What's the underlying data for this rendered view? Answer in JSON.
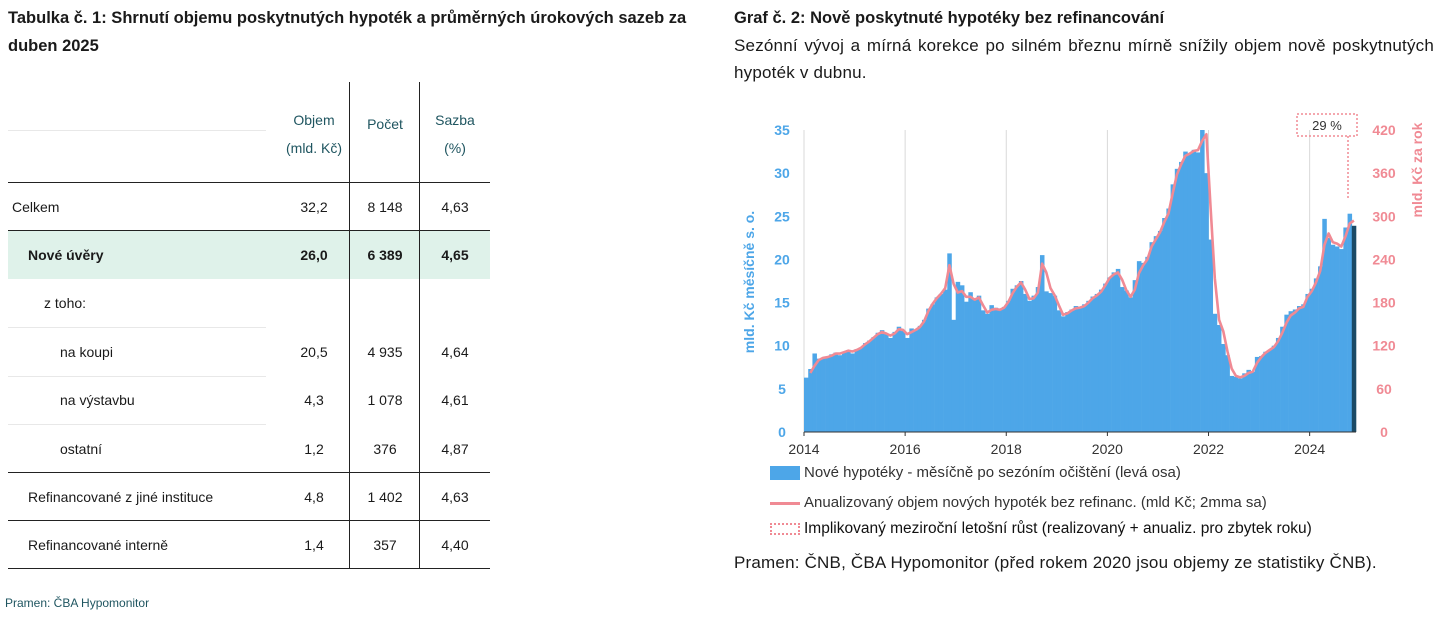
{
  "table": {
    "title": "Tabulka č. 1: Shrnutí objemu poskytnutých hypoték a průměrných úrokových sazeb za duben 2025",
    "headers": {
      "objem_line1": "Objem",
      "objem_line2": "(mld. Kč)",
      "pocet": "Počet",
      "sazba_line1": "Sazba",
      "sazba_line2": "(%)"
    },
    "rows": [
      {
        "label": "Celkem",
        "objem": "32,2",
        "pocet": "8 148",
        "sazba": "4,63"
      },
      {
        "label": "Nové úvěry",
        "objem": "26,0",
        "pocet": "6 389",
        "sazba": "4,65"
      },
      {
        "label": "z toho:",
        "objem": "",
        "pocet": "",
        "sazba": ""
      },
      {
        "label": "na koupi",
        "objem": "20,5",
        "pocet": "4 935",
        "sazba": "4,64"
      },
      {
        "label": "na výstavbu",
        "objem": "4,3",
        "pocet": "1 078",
        "sazba": "4,61"
      },
      {
        "label": "ostatní",
        "objem": "1,2",
        "pocet": "376",
        "sazba": "4,87"
      },
      {
        "label": "Refinancované z jiné instituce",
        "objem": "4,8",
        "pocet": "1 402",
        "sazba": "4,63"
      },
      {
        "label": "Refinancované interně",
        "objem": "1,4",
        "pocet": "357",
        "sazba": "4,40"
      }
    ],
    "source": "Pramen: ČBA Hypomonitor"
  },
  "chart_section": {
    "title": "Graf č. 2: Nově poskytnuté hypotéky bez refinancování",
    "subtitle": "Sezónní vývoj a mírná korekce po silném březnu mírně snížily objem nově poskytnutých hypoték v dubnu.",
    "source": "Pramen: ČNB, ČBA Hypomonitor (před rokem 2020 jsou objemy ze statistiky ČNB)."
  },
  "chart_data": {
    "type": "bar",
    "title": "",
    "xlabel": "",
    "ylabel": "mld. Kč měsíčně s. o.",
    "ylabel_right": "mld. Kč za rok",
    "ylim": [
      0,
      35
    ],
    "ylim_right": [
      0,
      420
    ],
    "yticks": [
      0,
      5,
      10,
      15,
      20,
      25,
      30,
      35
    ],
    "yticks_right": [
      0,
      60,
      120,
      180,
      240,
      300,
      360,
      420
    ],
    "xticks": [
      "2014",
      "2016",
      "2018",
      "2020",
      "2022",
      "2024"
    ],
    "x_start": "2014-01",
    "grid": "vertical",
    "annotation": "29 %",
    "colors": {
      "bars": "#4da6e8",
      "last_bar": "#1a4a66",
      "line": "#f08a94",
      "annotation": "#f08a94",
      "left_axis": "#4da6e8",
      "right_axis": "#f08a94"
    },
    "series": [
      {
        "name": "Nové hypotéky - měsíčně po sezóním očištění (levá osa)",
        "axis": "left",
        "values": [
          6.3,
          7.3,
          9.1,
          8.5,
          8.6,
          8.7,
          9.0,
          9.2,
          8.9,
          9.3,
          9.5,
          9.1,
          9.6,
          9.8,
          10.3,
          10.6,
          11.0,
          11.5,
          11.8,
          11.4,
          10.9,
          11.6,
          12.2,
          11.7,
          10.9,
          12.0,
          11.8,
          12.3,
          13.0,
          14.3,
          14.8,
          15.6,
          16.0,
          16.5,
          20.7,
          13.0,
          17.4,
          17.0,
          15.1,
          16.2,
          15.5,
          15.8,
          14.1,
          13.7,
          14.7,
          14.4,
          14.2,
          14.5,
          15.2,
          16.6,
          17.0,
          17.5,
          16.0,
          15.2,
          15.8,
          16.8,
          20.5,
          16.3,
          16.1,
          15.8,
          14.1,
          13.4,
          13.9,
          14.2,
          14.6,
          14.4,
          14.8,
          15.2,
          15.7,
          16.0,
          16.5,
          17.2,
          17.9,
          18.5,
          18.9,
          16.8,
          16.4,
          15.6,
          17.6,
          19.8,
          19.6,
          20.3,
          22.0,
          22.7,
          23.3,
          24.8,
          25.9,
          28.7,
          30.5,
          31.3,
          32.5,
          32.3,
          32.7,
          32.4,
          35.0,
          30.0,
          22.3,
          13.7,
          12.4,
          10.2,
          8.9,
          6.5,
          6.4,
          6.2,
          6.8,
          7.2,
          7.0,
          8.7,
          8.8,
          9.3,
          9.5,
          10.0,
          10.9,
          12.2,
          13.6,
          14.0,
          14.2,
          14.6,
          14.8,
          16.0,
          16.6,
          17.8,
          19.2,
          24.7,
          22.5,
          21.7,
          21.5,
          21.2,
          23.7,
          25.3,
          23.9
        ],
        "last_value": 23.9
      },
      {
        "name": "Anualizovaný objem nových hypoték bez refinanc. (mld Kč; 2mma sa)",
        "axis": "right",
        "values": [
          null,
          82,
          92,
          100,
          103,
          104,
          106,
          109,
          109,
          111,
          113,
          112,
          114,
          117,
          122,
          126,
          131,
          136,
          139,
          137,
          134,
          137,
          143,
          142,
          136,
          139,
          142,
          146,
          154,
          168,
          178,
          186,
          192,
          200,
          232,
          206,
          194,
          196,
          188,
          188,
          184,
          187,
          176,
          166,
          170,
          171,
          170,
          173,
          181,
          193,
          202,
          208,
          198,
          185,
          186,
          194,
          234,
          222,
          200,
          190,
          176,
          163,
          165,
          169,
          172,
          173,
          175,
          180,
          186,
          190,
          195,
          204,
          214,
          219,
          222,
          212,
          197,
          188,
          198,
          221,
          232,
          240,
          258,
          268,
          278,
          292,
          304,
          332,
          358,
          372,
          384,
          387,
          391,
          392,
          405,
          414,
          312,
          214,
          156,
          140,
          112,
          88,
          78,
          76,
          78,
          82,
          84,
          96,
          104,
          110,
          114,
          118,
          126,
          138,
          152,
          162,
          166,
          172,
          174,
          188,
          196,
          208,
          224,
          260,
          276,
          264,
          262,
          258,
          272,
          290,
          294
        ],
        "last_value": 294
      },
      {
        "name": "Implikovaný meziroční letošní růst (realizovaný + anualiz. pro zbytek roku)",
        "axis": "right",
        "value": "29 %"
      }
    ]
  }
}
